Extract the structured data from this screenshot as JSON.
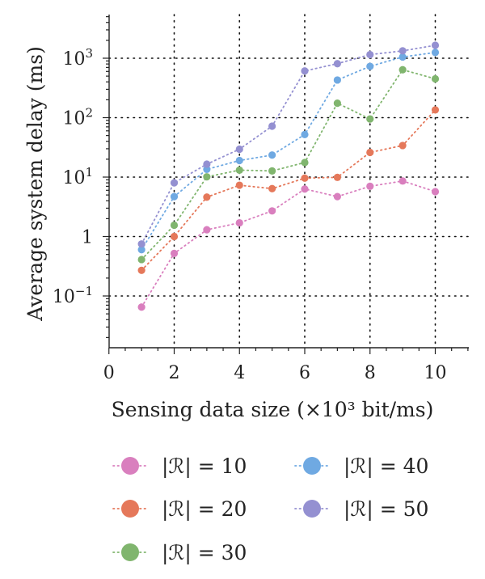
{
  "chart_data": {
    "type": "line",
    "xlabel": "Sensing data size (×10³ bit/ms)",
    "ylabel": "Average system delay (ms)",
    "xlim": [
      0,
      11
    ],
    "ylim": [
      0.01,
      5000
    ],
    "yscale": "log",
    "grid": true,
    "x_ticks": [
      0,
      2,
      4,
      6,
      8,
      10
    ],
    "y_ticks": [
      {
        "value": 0.1,
        "base": "10",
        "exp": "−1"
      },
      {
        "value": 1,
        "base": "1",
        "exp": ""
      },
      {
        "value": 10,
        "base": "10",
        "exp": "1"
      },
      {
        "value": 100,
        "base": "10",
        "exp": "2"
      },
      {
        "value": 1000,
        "base": "10",
        "exp": "3"
      }
    ],
    "legend_position": "below",
    "x": [
      1,
      2,
      3,
      4,
      5,
      6,
      7,
      8,
      9,
      10
    ],
    "series": [
      {
        "name": "|ℛ| = 10",
        "color": "#d97fbe",
        "values": [
          0.065,
          0.52,
          1.3,
          1.7,
          2.7,
          6.3,
          4.7,
          7.0,
          8.6,
          5.7
        ]
      },
      {
        "name": "|ℛ| = 20",
        "color": "#e5785a",
        "values": [
          0.27,
          1.0,
          4.6,
          7.3,
          6.4,
          9.6,
          9.9,
          26,
          34,
          135
        ]
      },
      {
        "name": "|ℛ| = 30",
        "color": "#80b56e",
        "values": [
          0.41,
          1.55,
          10.1,
          13.1,
          12.7,
          17.6,
          175,
          95,
          640,
          450
        ]
      },
      {
        "name": "|ℛ| = 40",
        "color": "#6fa9e2",
        "values": [
          0.6,
          4.7,
          13.5,
          19,
          23.5,
          52,
          430,
          730,
          1050,
          1250
        ]
      },
      {
        "name": "|ℛ| = 50",
        "color": "#9490d1",
        "values": [
          0.75,
          8.0,
          16.5,
          29.5,
          72,
          610,
          810,
          1150,
          1330,
          1650
        ]
      }
    ]
  }
}
